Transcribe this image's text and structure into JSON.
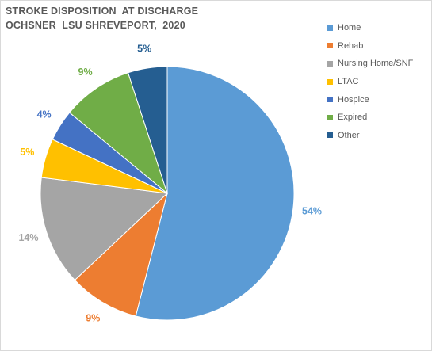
{
  "chart_data": {
    "type": "pie",
    "title": [
      "STROKE DISPOSITION  AT DISCHARGE",
      "OCHSNER  LSU SHREVEPORT,  2020"
    ],
    "categories": [
      "Home",
      "Rehab",
      "Nursing Home/SNF",
      "LTAC",
      "Hospice",
      "Expired",
      "Other"
    ],
    "values": [
      54,
      9,
      14,
      5,
      4,
      9,
      5
    ],
    "data_labels": [
      "54%",
      "9%",
      "14%",
      "5%",
      "4%",
      "9%",
      "5%"
    ],
    "colors": [
      "#5b9bd5",
      "#ed7d31",
      "#a5a5a5",
      "#ffc000",
      "#4472c4",
      "#70ad47",
      "#255e91"
    ],
    "start_angle_deg": 0,
    "direction": "clockwise",
    "legend_position": "right"
  }
}
